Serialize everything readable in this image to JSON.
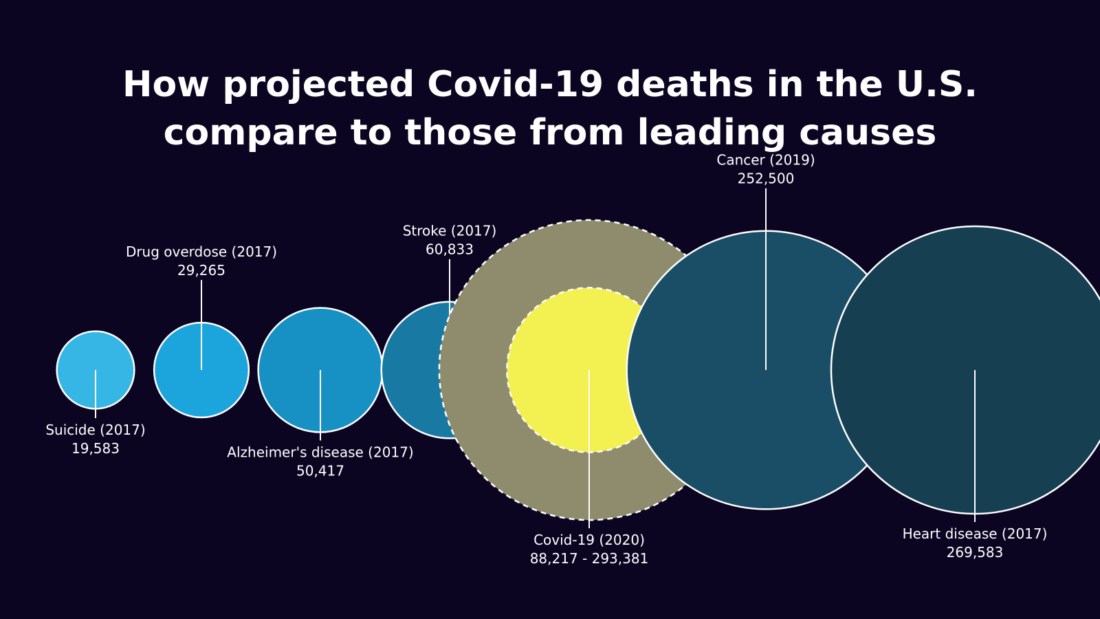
{
  "chart_data": {
    "type": "bubble",
    "title_lines": [
      "How projected Covid-19 deaths in the U.S.",
      "compare to those from leading causes"
    ],
    "series": [
      {
        "name": "Suicide (2017)",
        "value": 19583,
        "value_label": "19,583",
        "label_position": "below",
        "color": "#35b6e4"
      },
      {
        "name": "Drug overdose (2017)",
        "value": 29265,
        "value_label": "29,265",
        "label_position": "above",
        "color": "#1ca4dc"
      },
      {
        "name": "Alzheimer's disease (2017)",
        "value": 50417,
        "value_label": "50,417",
        "label_position": "below",
        "color": "#1790c4"
      },
      {
        "name": "Stroke (2017)",
        "value": 60833,
        "value_label": "60,833",
        "label_position": "above",
        "color": "#187aa3"
      },
      {
        "name": "Covid-19 (2020)",
        "value_low": 88217,
        "value_high": 293381,
        "value_label": "88,217 - 293,381",
        "label_position": "below",
        "color_low": "#f3f052",
        "color_high": "#8e8c6c"
      },
      {
        "name": "Cancer (2019)",
        "value": 252500,
        "value_label": "252,500",
        "label_position": "above",
        "color": "#1a4e66"
      },
      {
        "name": "Heart disease (2017)",
        "value": 269583,
        "value_label": "269,583",
        "label_position": "below",
        "color": "#173f52"
      }
    ],
    "colors": {
      "background": "#0b0521",
      "text": "#ffffff",
      "stroke": "#ffffff",
      "leader_line": "#ffffff"
    }
  }
}
